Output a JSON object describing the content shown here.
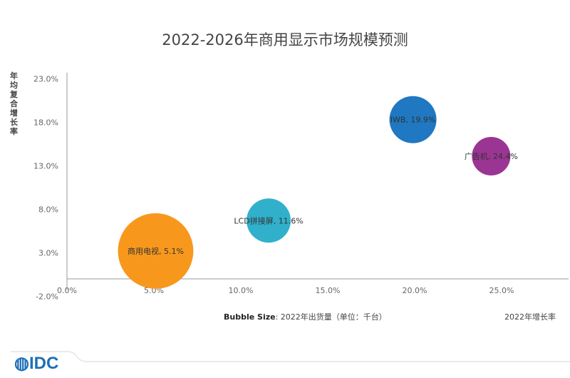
{
  "chart_data": {
    "type": "scatter",
    "subtype": "bubble",
    "title": "2022-2026年商用显示市场规模预测",
    "ylabel": "年均复合增长率",
    "xlabel": "2022年增长率",
    "bubble_size_label_bold": "Bubble Size",
    "bubble_size_label": ": 2022年出货量（单位：千台）",
    "xlim": [
      0,
      29
    ],
    "ylim": [
      -2,
      25
    ],
    "xticks": [
      "0.0%",
      "5.0%",
      "10.0%",
      "15.0%",
      "20.0%",
      "25.0%"
    ],
    "xtick_values": [
      0,
      5,
      10,
      15,
      20,
      25
    ],
    "yticks": [
      "23.0%",
      "18.0%",
      "13.0%",
      "8.0%",
      "3.0%",
      "-2.0%"
    ],
    "ytick_values": [
      23,
      18,
      13,
      8,
      3,
      -2
    ],
    "points": [
      {
        "label": "商用电视, 5.1%",
        "x": 5.1,
        "y": 3.2,
        "size": 2800,
        "color": "#F7981D"
      },
      {
        "label": "LCD拼接屏, 11.6%",
        "x": 11.6,
        "y": 6.7,
        "size": 960,
        "color": "#31B0CC"
      },
      {
        "label": "IWB, 19.9%",
        "x": 19.9,
        "y": 18.3,
        "size": 1090,
        "color": "#1F78C1"
      },
      {
        "label": "广告机, 24.4%",
        "x": 24.4,
        "y": 14.1,
        "size": 730,
        "color": "#9B3594"
      }
    ]
  },
  "logo": "IDC"
}
